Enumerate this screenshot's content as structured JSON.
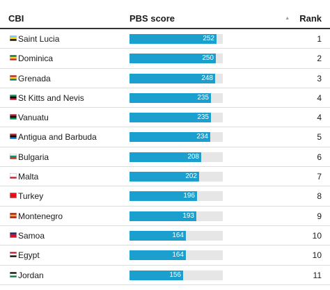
{
  "header": {
    "cbi_label": "CBI",
    "score_label": "PBS score",
    "rank_label": "Rank",
    "sort_icon": "▲"
  },
  "chart_data": {
    "type": "table",
    "columns": [
      "CBI",
      "PBS score",
      "Rank"
    ],
    "score_max": 270,
    "rows": [
      {
        "country": "Saint Lucia",
        "score": 252,
        "rank": 1,
        "flag": [
          "#65cfff",
          "#ffce00",
          "#000000"
        ]
      },
      {
        "country": "Dominica",
        "score": 250,
        "rank": 2,
        "flag": [
          "#006b3f",
          "#fcd116",
          "#d41c30"
        ]
      },
      {
        "country": "Grenada",
        "score": 248,
        "rank": 3,
        "flag": [
          "#ce1126",
          "#fcd116",
          "#007a5e"
        ]
      },
      {
        "country": "St Kitts and Nevis",
        "score": 235,
        "rank": 4,
        "flag": [
          "#009e49",
          "#000000",
          "#ce1126"
        ]
      },
      {
        "country": "Vanuatu",
        "score": 235,
        "rank": 4,
        "flag": [
          "#d21034",
          "#000000",
          "#009543"
        ]
      },
      {
        "country": "Antigua and Barbuda",
        "score": 234,
        "rank": 5,
        "flag": [
          "#ce1126",
          "#000000",
          "#0072c6"
        ]
      },
      {
        "country": "Bulgaria",
        "score": 208,
        "rank": 6,
        "flag": [
          "#ffffff",
          "#00966e",
          "#d62612"
        ]
      },
      {
        "country": "Malta",
        "score": 202,
        "rank": 7,
        "flag": [
          "#ffffff",
          "#ffffff",
          "#cf142b"
        ]
      },
      {
        "country": "Turkey",
        "score": 196,
        "rank": 8,
        "flag": [
          "#e30a17",
          "#e30a17",
          "#e30a17"
        ]
      },
      {
        "country": "Montenegro",
        "score": 193,
        "rank": 9,
        "flag": [
          "#c40308",
          "#d4af37",
          "#c40308"
        ]
      },
      {
        "country": "Samoa",
        "score": 164,
        "rank": 10,
        "flag": [
          "#002b7f",
          "#ce1126",
          "#ce1126"
        ]
      },
      {
        "country": "Egypt",
        "score": 164,
        "rank": 10,
        "flag": [
          "#ce1126",
          "#ffffff",
          "#000000"
        ]
      },
      {
        "country": "Jordan",
        "score": 156,
        "rank": 11,
        "flag": [
          "#000000",
          "#ffffff",
          "#007a3d"
        ]
      }
    ]
  }
}
